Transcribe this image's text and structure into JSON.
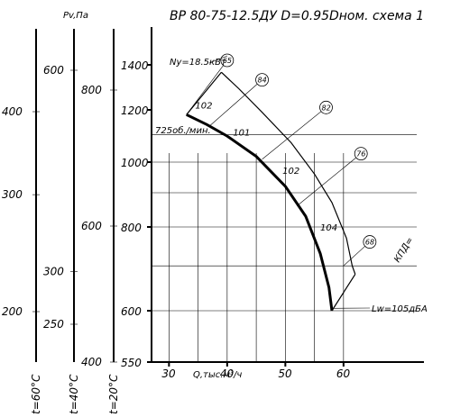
{
  "chart_data": {
    "type": "line",
    "title": "ВР 80-75-12.5ДУ D=0.95Dном. схема 1",
    "xlabel": "Q,тыс.м³/ч",
    "ylabel": "Pv,Па",
    "x_ticks": [
      "30",
      "40",
      "50",
      "60"
    ],
    "y_ticks": [
      "550",
      "600",
      "800",
      "1000",
      "1200",
      "1400"
    ],
    "xlim": [
      27,
      70
    ],
    "ylim": [
      550,
      1550
    ],
    "aux_scales": [
      {
        "label": "t=20°C",
        "ticks": [
          "400",
          "600",
          "800"
        ],
        "values": [
          400,
          600,
          800
        ]
      },
      {
        "label": "t=40°C",
        "ticks": [
          "250",
          "300",
          "600"
        ],
        "values": [
          250,
          300,
          600
        ]
      },
      {
        "label": "t=60°C",
        "ticks": [
          "200",
          "300",
          "400"
        ],
        "values": [
          200,
          300,
          400
        ]
      }
    ],
    "speed_label": "725об./мин.",
    "power_label": "Ny=18.5кВт",
    "noise_label": "Lw=105дБА",
    "efficiency_label": "КПД=",
    "series": [
      {
        "name": "",
        "points": [
          [
            33,
            1180
          ],
          [
            36.5,
            1140
          ],
          [
            40,
            1095
          ],
          [
            45,
            1020
          ],
          [
            50,
            920
          ],
          [
            53.5,
            830
          ],
          [
            56,
            730
          ],
          [
            57.5,
            650
          ],
          [
            58,
            600
          ]
        ]
      },
      {
        "name": "",
        "points": [
          [
            39,
            1365
          ],
          [
            42,
            1290
          ],
          [
            46,
            1190
          ],
          [
            51,
            1070
          ],
          [
            55,
            960
          ],
          [
            58,
            870
          ],
          [
            60.5,
            770
          ],
          [
            61.5,
            700
          ],
          [
            62,
            680
          ]
        ]
      }
    ],
    "efficiency_lines": [
      {
        "label": "65",
        "from": [
          33,
          1180
        ],
        "to": [
          40,
          1420
        ]
      },
      {
        "label": "84",
        "from": [
          37,
          1135
        ],
        "to": [
          46,
          1330
        ]
      },
      {
        "label": "82",
        "from": [
          46,
          1010
        ],
        "to": [
          57,
          1210
        ]
      },
      {
        "label": "76",
        "from": [
          52,
          860
        ],
        "to": [
          63,
          1030
        ]
      },
      {
        "label": "68",
        "from": [
          60,
          700
        ],
        "to": [
          64.5,
          760
        ]
      }
    ],
    "point_labels": [
      {
        "text": "102",
        "x": 34.5,
        "y": 1205
      },
      {
        "text": "101",
        "x": 41,
        "y": 1098
      },
      {
        "text": "102",
        "x": 49.5,
        "y": 960
      },
      {
        "text": "104",
        "x": 56,
        "y": 790
      }
    ]
  }
}
